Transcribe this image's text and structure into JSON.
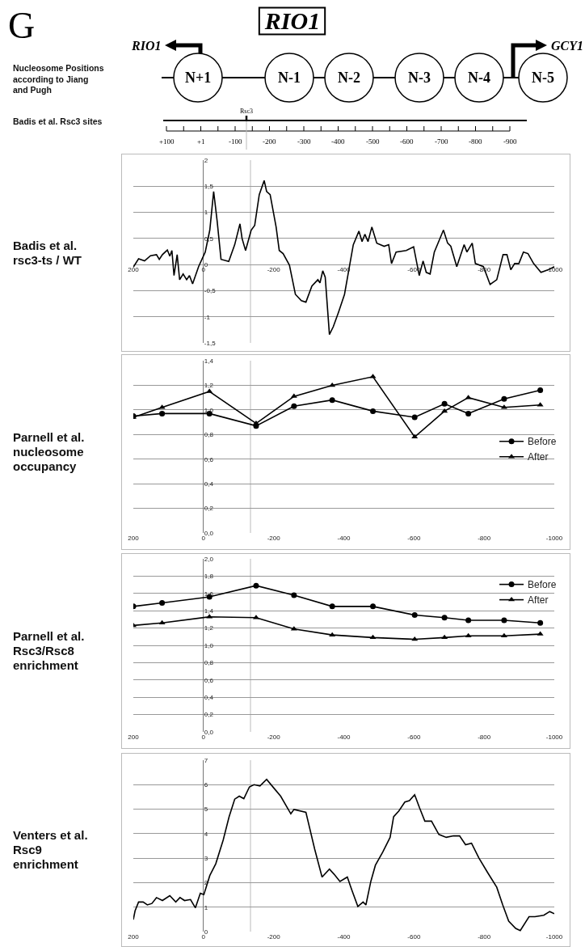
{
  "chart_data": [
    {
      "type": "other",
      "title": "RIO1",
      "annotations": [
        "G",
        "Nucleosome Positions according to Jiang and Pugh",
        "Badis et al. Rsc3 sites",
        "RIO1",
        "GCY1",
        "N+1",
        "N-1",
        "N-2",
        "N-3",
        "N-4",
        "N-5",
        "Rsc3",
        "+100",
        "+1",
        "-100",
        "-200",
        "-300",
        "-400",
        "-500",
        "-600",
        "-700",
        "-800",
        "-900"
      ]
    },
    {
      "type": "line",
      "title": "Badis et al. rsc3-ts / WT",
      "xlim": [
        200,
        -1000
      ],
      "xticks": [
        200,
        0,
        -200,
        -400,
        -600,
        -800,
        -1000
      ],
      "ylim": [
        -1.5,
        2
      ],
      "yticks": [
        {
          "value": -1.5,
          "label": "-1,5"
        },
        -1,
        {
          "value": -0.5,
          "label": "-0,5"
        },
        0,
        {
          "value": 0.5,
          "label": "0,5"
        },
        1,
        {
          "value": 1.5,
          "label": "1,5"
        },
        2
      ],
      "grid": "y",
      "legend": false,
      "ref_lines": [
        {
          "axis": "x",
          "value": -134,
          "color": "#bbbbbb"
        }
      ],
      "x": [
        200,
        185,
        168,
        151,
        134,
        126,
        117,
        103,
        96,
        90,
        84,
        75,
        68,
        58,
        48,
        40,
        31,
        14,
        -5,
        -18,
        -29,
        -39,
        -50,
        -72,
        -89,
        -104,
        -110,
        -120,
        -136,
        -146,
        -159,
        -173,
        -180,
        -190,
        -207,
        -216,
        -227,
        -245,
        -262,
        -279,
        -292,
        -309,
        -326,
        -332,
        -340,
        -347,
        -359,
        -370,
        -385,
        -402,
        -427,
        -443,
        -452,
        -460,
        -469,
        -480,
        -494,
        -515,
        -528,
        -536,
        -549,
        -578,
        -599,
        -615,
        -626,
        -635,
        -646,
        -658,
        -684,
        -696,
        -705,
        -722,
        -743,
        -751,
        -766,
        -775,
        -798,
        -817,
        -836,
        -854,
        -865,
        -876,
        -887,
        -899,
        -912,
        -925,
        -941,
        -962,
        -983,
        -1000
      ],
      "series": [
        {
          "color": "#000000",
          "values": [
            -0.05,
            0.11,
            0.07,
            0.17,
            0.19,
            0.1,
            0.19,
            0.28,
            0.16,
            0.27,
            -0.21,
            0.19,
            -0.29,
            -0.18,
            -0.29,
            -0.21,
            -0.37,
            -0.04,
            0.24,
            0.66,
            1.4,
            0.83,
            0.1,
            0.06,
            0.38,
            0.78,
            0.5,
            0.27,
            0.66,
            0.75,
            1.34,
            1.61,
            1.4,
            1.34,
            0.72,
            0.27,
            0.21,
            -0.01,
            -0.57,
            -0.69,
            -0.72,
            -0.41,
            -0.29,
            -0.35,
            -0.12,
            -0.24,
            -1.34,
            -1.19,
            -0.91,
            -0.57,
            0.38,
            0.64,
            0.44,
            0.58,
            0.44,
            0.72,
            0.41,
            0.35,
            0.38,
            0.02,
            0.24,
            0.27,
            0.34,
            -0.21,
            0.07,
            -0.15,
            -0.18,
            0.24,
            0.66,
            0.41,
            0.35,
            -0.04,
            0.38,
            0.24,
            0.41,
            0.02,
            -0.04,
            -0.38,
            -0.29,
            0.19,
            0.19,
            -0.1,
            0.02,
            0.02,
            0.24,
            0.21,
            0.02,
            -0.15,
            -0.1,
            -0.04
          ]
        }
      ]
    },
    {
      "type": "line",
      "title": "Parnell et al. nucleosome occupancy",
      "xlim": [
        200,
        -1000
      ],
      "xticks": [
        200,
        0,
        -200,
        -400,
        -600,
        -800,
        -1000
      ],
      "ylim": [
        0,
        1.4
      ],
      "yticks": [
        {
          "value": 0,
          "label": "0,0"
        },
        {
          "value": 0.2,
          "label": "0,2"
        },
        {
          "value": 0.4,
          "label": "0,4"
        },
        {
          "value": 0.6,
          "label": "0,6"
        },
        {
          "value": 0.8,
          "label": "0,8"
        },
        {
          "value": 1,
          "label": "1,0"
        },
        {
          "value": 1.2,
          "label": "1,2"
        },
        {
          "value": 1.4,
          "label": "1,4"
        }
      ],
      "grid": "y",
      "legend": "right",
      "ref_lines": [
        {
          "axis": "x",
          "value": -134,
          "color": "#bbbbbb"
        }
      ],
      "x": [
        200,
        118,
        -17,
        -150,
        -258,
        -367,
        -483,
        -602,
        -687,
        -755,
        -857,
        -960
      ],
      "series": [
        {
          "name": "Before",
          "color": "#000000",
          "marker": "circle",
          "values": [
            0.95,
            0.97,
            0.97,
            0.87,
            1.03,
            1.08,
            0.99,
            0.94,
            1.05,
            0.97,
            1.09,
            1.16
          ]
        },
        {
          "name": "After",
          "color": "#000000",
          "marker": "triangle",
          "values": [
            0.94,
            1.02,
            1.15,
            0.89,
            1.11,
            1.2,
            1.27,
            0.78,
            0.99,
            1.1,
            1.02,
            1.04
          ]
        }
      ]
    },
    {
      "type": "line",
      "title": "Parnell et al. Rsc3/Rsc8 enrichment",
      "xlim": [
        200,
        -1000
      ],
      "xticks": [
        200,
        0,
        -200,
        -400,
        -600,
        -800,
        -1000
      ],
      "ylim": [
        0,
        2
      ],
      "yticks": [
        {
          "value": 0,
          "label": "0,0"
        },
        {
          "value": 0.2,
          "label": "0,2"
        },
        {
          "value": 0.4,
          "label": "0,4"
        },
        {
          "value": 0.6,
          "label": "0,6"
        },
        {
          "value": 0.8,
          "label": "0,8"
        },
        {
          "value": 1,
          "label": "1,0"
        },
        {
          "value": 1.2,
          "label": "1,2"
        },
        {
          "value": 1.4,
          "label": "1,4"
        },
        {
          "value": 1.6,
          "label": "1,6"
        },
        {
          "value": 1.8,
          "label": "1,8"
        },
        {
          "value": 2,
          "label": "2,0"
        }
      ],
      "grid": "y",
      "legend": "top right",
      "ref_lines": [
        {
          "axis": "x",
          "value": -134,
          "color": "#bbbbbb"
        }
      ],
      "x": [
        200,
        118,
        -17,
        -150,
        -258,
        -367,
        -483,
        -602,
        -687,
        -755,
        -857,
        -960
      ],
      "series": [
        {
          "name": "Before",
          "color": "#000000",
          "marker": "circle",
          "values": [
            1.45,
            1.49,
            1.56,
            1.69,
            1.58,
            1.45,
            1.45,
            1.35,
            1.32,
            1.29,
            1.29,
            1.26
          ]
        },
        {
          "name": "After",
          "color": "#000000",
          "marker": "triangle",
          "values": [
            1.23,
            1.26,
            1.33,
            1.32,
            1.19,
            1.12,
            1.09,
            1.07,
            1.09,
            1.11,
            1.11,
            1.13
          ]
        }
      ]
    },
    {
      "type": "line",
      "title": "Venters et al. Rsc9 enrichment",
      "xlim": [
        200,
        -1000
      ],
      "xticks": [
        200,
        0,
        -200,
        -400,
        -600,
        -800,
        -1000
      ],
      "ylim": [
        0,
        7
      ],
      "yticks": [
        0,
        1,
        2,
        3,
        4,
        5,
        6,
        7
      ],
      "grid": "y",
      "legend": false,
      "ref_lines": [
        {
          "axis": "x",
          "value": -134,
          "color": "#bbbbbb"
        }
      ],
      "x": [
        200,
        195,
        185,
        172,
        160,
        147,
        134,
        117,
        96,
        79,
        67,
        54,
        37,
        23,
        9,
        -1,
        -18,
        -35,
        -56,
        -73,
        -89,
        -102,
        -115,
        -131,
        -144,
        -161,
        -180,
        -199,
        -220,
        -249,
        -258,
        -292,
        -317,
        -338,
        -359,
        -372,
        -389,
        -410,
        -423,
        -440,
        -455,
        -463,
        -477,
        -490,
        -511,
        -532,
        -542,
        -557,
        -574,
        -587,
        -602,
        -616,
        -631,
        -650,
        -671,
        -692,
        -713,
        -730,
        -747,
        -764,
        -785,
        -810,
        -836,
        -853,
        -870,
        -890,
        -903,
        -928,
        -945,
        -970,
        -987,
        -1000
      ],
      "series": [
        {
          "color": "#000000",
          "values": [
            0.49,
            0.85,
            1.21,
            1.21,
            1.09,
            1.15,
            1.39,
            1.27,
            1.47,
            1.21,
            1.39,
            1.27,
            1.31,
            0.97,
            1.57,
            1.51,
            2.29,
            2.77,
            3.73,
            4.69,
            5.41,
            5.53,
            5.43,
            5.91,
            6.0,
            5.95,
            6.22,
            5.89,
            5.53,
            4.81,
            4.99,
            4.87,
            3.37,
            2.23,
            2.55,
            2.35,
            2.05,
            2.23,
            1.69,
            1.03,
            1.21,
            1.09,
            2.05,
            2.71,
            3.25,
            3.85,
            4.69,
            4.93,
            5.29,
            5.35,
            5.59,
            5.05,
            4.51,
            4.51,
            3.97,
            3.85,
            3.91,
            3.91,
            3.55,
            3.61,
            3.01,
            2.41,
            1.81,
            1.09,
            0.43,
            0.13,
            0.04,
            0.61,
            0.61,
            0.67,
            0.82,
            0.73
          ]
        }
      ]
    }
  ]
}
